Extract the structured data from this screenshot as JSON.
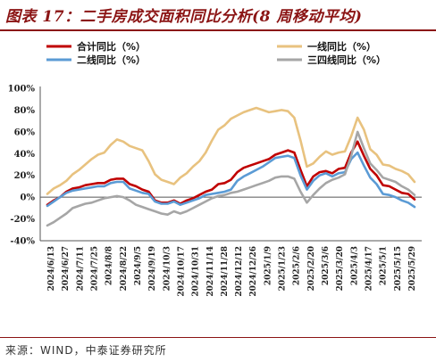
{
  "header": {
    "title": "图表 17：二手房成交面积同比分析(8 周移动平均)"
  },
  "footer": {
    "source": "来源：WIND，中泰证券研究所"
  },
  "chart_data": {
    "type": "line",
    "title": "",
    "xlabel": "",
    "ylabel": "",
    "ylim": [
      -40,
      100
    ],
    "yticks": [
      "100%",
      "80%",
      "60%",
      "40%",
      "20%",
      "0%",
      "-20%",
      "-40%"
    ],
    "ytick_values": [
      100,
      80,
      60,
      40,
      20,
      0,
      -20,
      -40
    ],
    "grid": false,
    "legend_placement": "top",
    "x_tick_labels": [
      "2024/6/13",
      "2024/6/27",
      "2024/7/11",
      "2024/7/25",
      "2024/8/8",
      "2024/8/22",
      "2024/9/5",
      "2024/9/19",
      "2024/10/3",
      "2024/10/17",
      "2024/10/31",
      "2024/11/14",
      "2024/11/28",
      "2024/12/12",
      "2024/12/26",
      "2025/1/9",
      "2025/1/23",
      "2025/2/6",
      "2025/2/20",
      "2025/3/6",
      "2025/3/20",
      "2025/4/3",
      "2025/4/17",
      "2025/5/1",
      "2025/5/15",
      "2025/5/29"
    ],
    "series": [
      {
        "name": "合计同比（%）",
        "color": "#C00000",
        "values": [
          -7,
          -3,
          0,
          5,
          8,
          9,
          11,
          12,
          13,
          13,
          16,
          17,
          17,
          12,
          10,
          7,
          5,
          -3,
          -5,
          -5,
          -3,
          -6,
          -3,
          -1,
          2,
          5,
          7,
          12,
          13,
          16,
          23,
          27,
          29,
          31,
          33,
          35,
          39,
          41,
          43,
          41,
          25,
          10,
          19,
          23,
          24,
          22,
          26,
          27,
          41,
          51,
          38,
          26,
          20,
          11,
          10,
          7,
          4,
          3,
          -2
        ]
      },
      {
        "name": "一线同比（%）",
        "color": "#E8C27F",
        "values": [
          3,
          8,
          11,
          15,
          21,
          25,
          30,
          35,
          39,
          41,
          48,
          53,
          51,
          47,
          45,
          43,
          33,
          21,
          16,
          14,
          12,
          18,
          22,
          28,
          33,
          41,
          52,
          62,
          66,
          72,
          75,
          78,
          80,
          82,
          80,
          78,
          79,
          80,
          79,
          73,
          52,
          28,
          31,
          37,
          42,
          39,
          41,
          42,
          56,
          73,
          62,
          44,
          39,
          30,
          29,
          26,
          24,
          21,
          14
        ]
      },
      {
        "name": "二线同比（%）",
        "color": "#5B9BD5",
        "values": [
          -8,
          -4,
          0,
          4,
          6,
          7,
          8,
          9,
          10,
          10,
          13,
          14,
          14,
          8,
          6,
          4,
          3,
          -4,
          -6,
          -6,
          -4,
          -7,
          -5,
          -3,
          -1,
          2,
          3,
          4,
          5,
          7,
          15,
          19,
          22,
          25,
          28,
          32,
          36,
          37,
          38,
          36,
          20,
          7,
          15,
          20,
          22,
          19,
          22,
          23,
          35,
          41,
          29,
          18,
          12,
          3,
          2,
          0,
          -3,
          -5,
          -9
        ]
      },
      {
        "name": "三四线同比（%）",
        "color": "#A6A6A6",
        "values": [
          -26,
          -23,
          -19,
          -15,
          -10,
          -8,
          -6,
          -5,
          -3,
          -1,
          0,
          1,
          0,
          -3,
          -7,
          -9,
          -11,
          -13,
          -15,
          -16,
          -13,
          -15,
          -13,
          -10,
          -7,
          -4,
          -1,
          1,
          2,
          4,
          5,
          7,
          9,
          11,
          13,
          15,
          18,
          19,
          19,
          17,
          5,
          -5,
          2,
          8,
          13,
          16,
          18,
          21,
          38,
          60,
          45,
          31,
          25,
          18,
          16,
          14,
          10,
          7,
          2
        ]
      }
    ]
  }
}
